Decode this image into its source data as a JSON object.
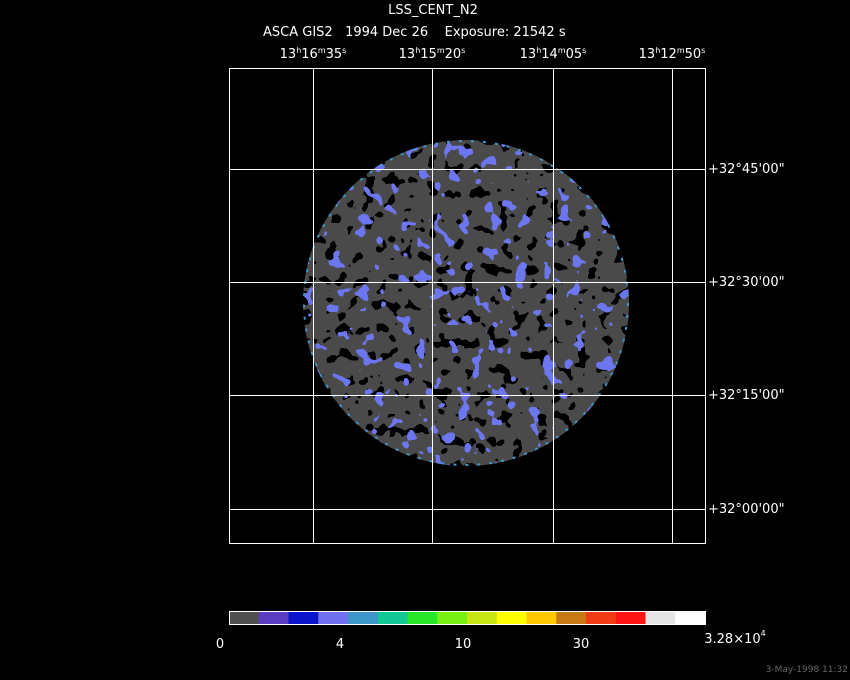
{
  "header": {
    "title": "LSS_CENT_N2",
    "subtitle": "ASCA GIS2   1994 Dec 26    Exposure: 21542 s"
  },
  "ra_labels": [
    [
      "13",
      "h",
      "16",
      "m",
      "35",
      "s"
    ],
    [
      "13",
      "h",
      "15",
      "m",
      "20",
      "s"
    ],
    [
      "13",
      "h",
      "14",
      "m",
      "05",
      "s"
    ],
    [
      "13",
      "h",
      "12",
      "m",
      "50",
      "s"
    ]
  ],
  "dec_labels": [
    "+32°45'00\"",
    "+32°30'00\"",
    "+32°15'00\"",
    "+32°00'00\""
  ],
  "colorbar": {
    "colors": [
      "#505050",
      "#5a3cc0",
      "#0a14c8",
      "#7070f0",
      "#3c96c8",
      "#14c896",
      "#28e628",
      "#78f014",
      "#c8e614",
      "#ffff00",
      "#ffc800",
      "#c87814",
      "#f03c14",
      "#ff1414",
      "#e6e6e6",
      "#ffffff"
    ],
    "labels": [
      "0",
      "4",
      "10",
      "30"
    ],
    "max_label": [
      "3.28×10",
      "4"
    ]
  },
  "timestamp": "3-May-1998 11:32"
}
